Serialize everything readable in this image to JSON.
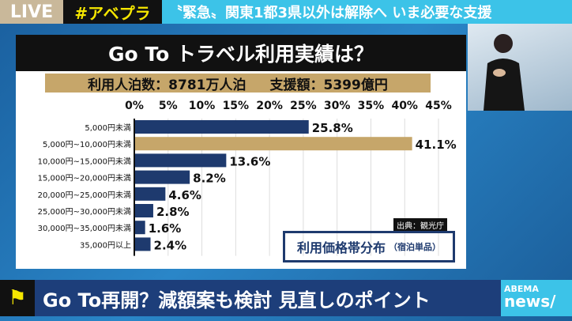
{
  "top": {
    "live": "LIVE",
    "tag": "#アベプラ",
    "headline": "〝緊急〟関東1都3県以外は解除へ いま必要な支援"
  },
  "panel": {
    "title": "Go To トラベル利用実績は？",
    "stat1": "利用人泊数：8781万人泊",
    "stat2": "支援額：5399億円",
    "source": "出典：観光庁",
    "box_title": "利用価格帯分布",
    "box_note": "（宿泊単品）"
  },
  "colors": {
    "bar": "#1e3a6e",
    "highlight": "#c6a66a"
  },
  "chart_data": {
    "type": "bar",
    "orientation": "horizontal",
    "title": "利用価格帯分布（宿泊単品）",
    "categories": [
      "5,000円未満",
      "5,000円~10,000円未満",
      "10,000円~15,000円未満",
      "15,000円~20,000円未満",
      "20,000円~25,000円未満",
      "25,000円~30,000円未満",
      "30,000円~35,000円未満",
      "35,000円以上"
    ],
    "values": [
      25.8,
      41.1,
      13.6,
      8.2,
      4.6,
      2.8,
      1.6,
      2.4
    ],
    "labels": [
      "25.8%",
      "41.1%",
      "13.6%",
      "8.2%",
      "4.6%",
      "2.8%",
      "1.6%",
      "2.4%"
    ],
    "highlight_index": 1,
    "xticks": [
      "0%",
      "5%",
      "10%",
      "15%",
      "20%",
      "25%",
      "30%",
      "35%",
      "40%",
      "45%"
    ],
    "xlim": [
      0,
      45
    ],
    "grid": true
  },
  "ticker": {
    "text": "Go To再開？減額案も検討 見直しのポイント",
    "logo_top": "ABEMA",
    "logo_bottom": "news/"
  }
}
